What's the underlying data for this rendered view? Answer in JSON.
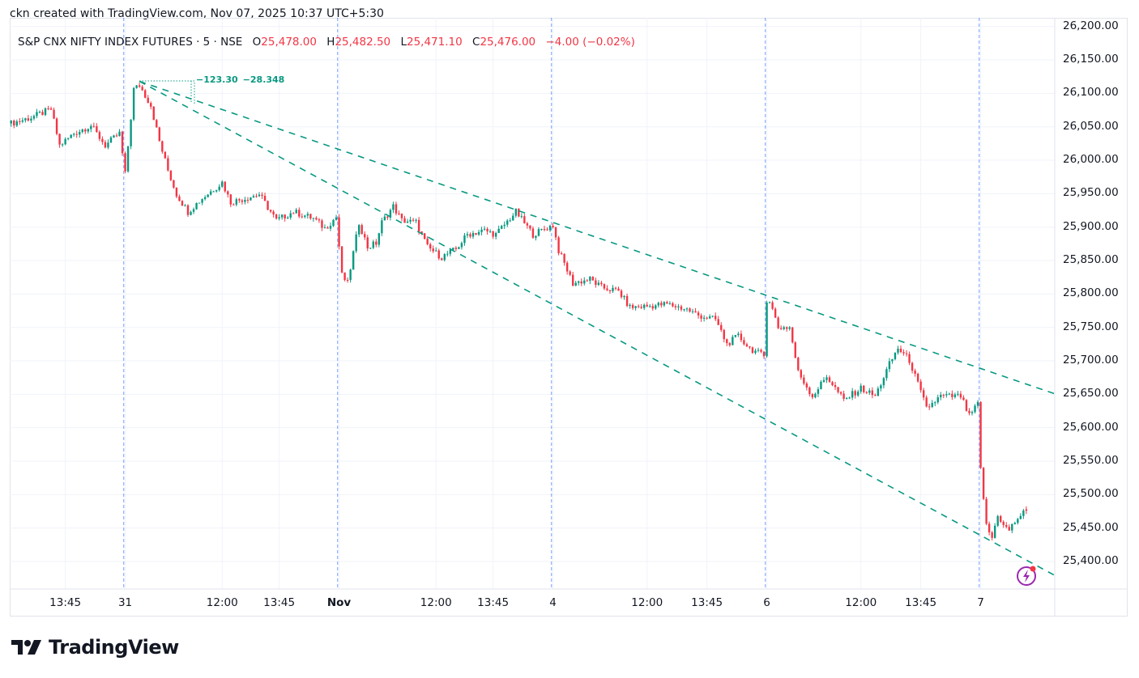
{
  "header": {
    "credit": "ckn created with TradingView.com, Nov 07, 2025 10:37 UTC+5:30"
  },
  "legend": {
    "symbol": "S&P CNX NIFTY INDEX FUTURES · 5 · NSE",
    "o_label": "O",
    "o": "25,478.00",
    "h_label": "H",
    "h": "25,482.50",
    "l_label": "L",
    "l": "25,471.10",
    "c_label": "C",
    "c": "25,476.00",
    "change": "−4.00 (−0.02%)"
  },
  "measure_labels": [
    "−123.30",
    "−28.348"
  ],
  "logo": {
    "text": "TradingView"
  },
  "colors": {
    "up": "#089981",
    "down": "#f23645",
    "trendline": "#089981",
    "separator": "#2962ff",
    "grid": "#f0f3fa",
    "alert": "#9c27b0"
  },
  "chart_data": {
    "type": "candlestick",
    "title": "S&P CNX NIFTY INDEX FUTURES · 5 · NSE",
    "interval": "5 min",
    "bars_total": 357,
    "ylim": [
      25360,
      26205
    ],
    "y_ticks": [
      {
        "value": 26200,
        "label": "26,200.00"
      },
      {
        "value": 26150,
        "label": "26,150.00"
      },
      {
        "value": 26100,
        "label": "26,100.00"
      },
      {
        "value": 26050,
        "label": "26,050.00"
      },
      {
        "value": 26000,
        "label": "26,000.00"
      },
      {
        "value": 25950,
        "label": "25,950.00"
      },
      {
        "value": 25900,
        "label": "25,900.00"
      },
      {
        "value": 25850,
        "label": "25,850.00"
      },
      {
        "value": 25800,
        "label": "25,800.00"
      },
      {
        "value": 25750,
        "label": "25,750.00"
      },
      {
        "value": 25700,
        "label": "25,700.00"
      },
      {
        "value": 25650,
        "label": "25,650.00"
      },
      {
        "value": 25600,
        "label": "25,600.00"
      },
      {
        "value": 25550,
        "label": "25,550.00"
      },
      {
        "value": 25500,
        "label": "25,500.00"
      },
      {
        "value": 25450,
        "label": "25,450.00"
      },
      {
        "value": 25400,
        "label": "25,400.00"
      }
    ],
    "x_ticks": [
      {
        "bar": 19,
        "label": "13:45"
      },
      {
        "bar": 40,
        "label": "31"
      },
      {
        "bar": 74,
        "label": "12:00"
      },
      {
        "bar": 94,
        "label": "13:45"
      },
      {
        "bar": 115,
        "label": "Nov",
        "bold": true
      },
      {
        "bar": 149,
        "label": "12:00"
      },
      {
        "bar": 169,
        "label": "13:45"
      },
      {
        "bar": 190,
        "label": "4"
      },
      {
        "bar": 223,
        "label": "12:00"
      },
      {
        "bar": 244,
        "label": "13:45"
      },
      {
        "bar": 265,
        "label": "6"
      },
      {
        "bar": 298,
        "label": "12:00"
      },
      {
        "bar": 319,
        "label": "13:45"
      },
      {
        "bar": 340,
        "label": "7"
      }
    ],
    "session_separators": [
      40,
      115,
      190,
      265,
      340
    ],
    "price_path": [
      [
        0,
        26055
      ],
      [
        7,
        26064
      ],
      [
        14,
        26076
      ],
      [
        17,
        26022
      ],
      [
        22,
        26040
      ],
      [
        28,
        26052
      ],
      [
        33,
        26022
      ],
      [
        38,
        26040
      ],
      [
        40,
        25979
      ],
      [
        43,
        26106
      ],
      [
        45,
        26112
      ],
      [
        49,
        26082
      ],
      [
        52,
        26028
      ],
      [
        55,
        25985
      ],
      [
        58,
        25949
      ],
      [
        62,
        25923
      ],
      [
        67,
        25943
      ],
      [
        74,
        25967
      ],
      [
        77,
        25937
      ],
      [
        82,
        25943
      ],
      [
        87,
        25949
      ],
      [
        93,
        25910
      ],
      [
        99,
        25923
      ],
      [
        106,
        25913
      ],
      [
        110,
        25898
      ],
      [
        114,
        25915
      ],
      [
        116,
        25828
      ],
      [
        118,
        25816
      ],
      [
        122,
        25907
      ],
      [
        125,
        25870
      ],
      [
        128,
        25876
      ],
      [
        130,
        25907
      ],
      [
        134,
        25931
      ],
      [
        137,
        25910
      ],
      [
        142,
        25907
      ],
      [
        146,
        25870
      ],
      [
        151,
        25855
      ],
      [
        156,
        25867
      ],
      [
        160,
        25889
      ],
      [
        166,
        25895
      ],
      [
        170,
        25889
      ],
      [
        177,
        25923
      ],
      [
        183,
        25889
      ],
      [
        190,
        25903
      ],
      [
        192,
        25865
      ],
      [
        197,
        25816
      ],
      [
        203,
        25822
      ],
      [
        207,
        25810
      ],
      [
        213,
        25804
      ],
      [
        217,
        25780
      ],
      [
        224,
        25782
      ],
      [
        230,
        25785
      ],
      [
        237,
        25777
      ],
      [
        241,
        25768
      ],
      [
        247,
        25762
      ],
      [
        251,
        25725
      ],
      [
        255,
        25737
      ],
      [
        259,
        25719
      ],
      [
        264,
        25707
      ],
      [
        265,
        25792
      ],
      [
        266,
        25790
      ],
      [
        269,
        25750
      ],
      [
        273,
        25750
      ],
      [
        276,
        25683
      ],
      [
        281,
        25647
      ],
      [
        286,
        25677
      ],
      [
        292,
        25641
      ],
      [
        298,
        25659
      ],
      [
        303,
        25647
      ],
      [
        308,
        25695
      ],
      [
        311,
        25719
      ],
      [
        315,
        25701
      ],
      [
        321,
        25629
      ],
      [
        326,
        25647
      ],
      [
        333,
        25647
      ],
      [
        336,
        25617
      ],
      [
        339,
        25635
      ],
      [
        340,
        25538
      ],
      [
        342,
        25453
      ],
      [
        344,
        25435
      ],
      [
        346,
        25471
      ],
      [
        348,
        25453
      ],
      [
        350,
        25447
      ],
      [
        353,
        25465
      ],
      [
        356,
        25476
      ]
    ],
    "trendlines": [
      {
        "name": "upper",
        "from": [
          45,
          26118
        ],
        "to": [
          366.5,
          25650
        ]
      },
      {
        "name": "lower",
        "from": [
          45,
          26118
        ],
        "to": [
          366.5,
          25378
        ]
      }
    ],
    "last": {
      "open": 25478.0,
      "high": 25482.5,
      "low": 25471.1,
      "close": 25476.0,
      "change": -4.0,
      "change_pct": -0.02
    }
  }
}
